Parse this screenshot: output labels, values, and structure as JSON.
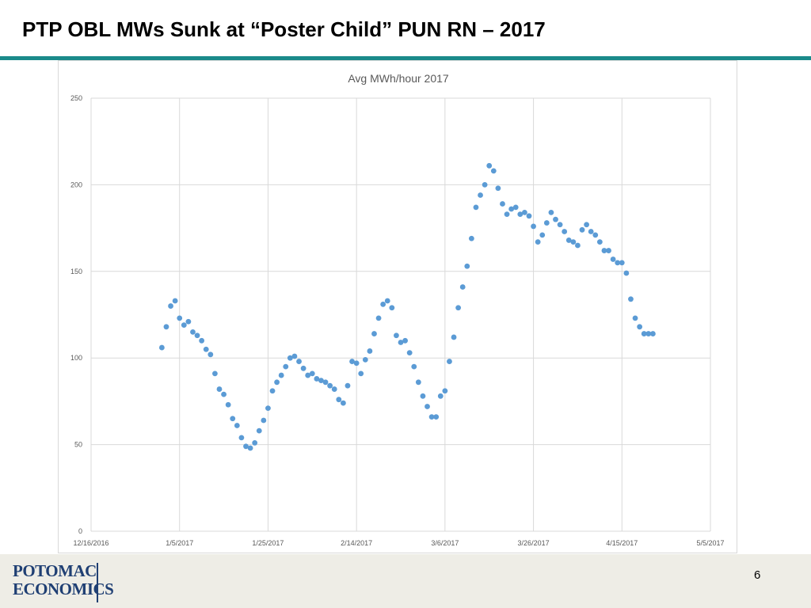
{
  "slide": {
    "title": "PTP OBL MWs Sunk at “Poster Child” PUN RN – 2017",
    "page_number": "6",
    "logo_lines": [
      "POTOMAC",
      "ECONOMICS"
    ],
    "accent_color": "#1a8a8a"
  },
  "chart_data": {
    "type": "scatter",
    "title": "Avg MWh/hour  2017",
    "xlabel": "",
    "ylabel": "",
    "xlim": [
      "2016-12-16",
      "2017-05-05"
    ],
    "ylim": [
      0,
      250
    ],
    "x_ticks": [
      "12/16/2016",
      "1/5/2017",
      "1/25/2017",
      "2/14/2017",
      "3/6/2017",
      "3/26/2017",
      "4/15/2017",
      "5/5/2017"
    ],
    "y_ticks": [
      0,
      50,
      100,
      150,
      200,
      250
    ],
    "grid": true,
    "legend": "none",
    "marker_color": "#5b9bd5",
    "series": [
      {
        "x": [
          "2017-01-01",
          "2017-01-02",
          "2017-01-03",
          "2017-01-04",
          "2017-01-05",
          "2017-01-06",
          "2017-01-07",
          "2017-01-08",
          "2017-01-09",
          "2017-01-10",
          "2017-01-11",
          "2017-01-12",
          "2017-01-13",
          "2017-01-14",
          "2017-01-15",
          "2017-01-16",
          "2017-01-17",
          "2017-01-18",
          "2017-01-19",
          "2017-01-20",
          "2017-01-21",
          "2017-01-22",
          "2017-01-23",
          "2017-01-24",
          "2017-01-25",
          "2017-01-26",
          "2017-01-27",
          "2017-01-28",
          "2017-01-29",
          "2017-01-30",
          "2017-01-31",
          "2017-02-01",
          "2017-02-02",
          "2017-02-03",
          "2017-02-04",
          "2017-02-05",
          "2017-02-06",
          "2017-02-07",
          "2017-02-08",
          "2017-02-09",
          "2017-02-10",
          "2017-02-11",
          "2017-02-12",
          "2017-02-13",
          "2017-02-14",
          "2017-02-15",
          "2017-02-16",
          "2017-02-17",
          "2017-02-18",
          "2017-02-19",
          "2017-02-20",
          "2017-02-21",
          "2017-02-22",
          "2017-02-23",
          "2017-02-24",
          "2017-02-25",
          "2017-02-26",
          "2017-02-27",
          "2017-02-28",
          "2017-03-01",
          "2017-03-02",
          "2017-03-03",
          "2017-03-04",
          "2017-03-05",
          "2017-03-06",
          "2017-03-07",
          "2017-03-08",
          "2017-03-09",
          "2017-03-10",
          "2017-03-11",
          "2017-03-12",
          "2017-03-13",
          "2017-03-14",
          "2017-03-15",
          "2017-03-16",
          "2017-03-17",
          "2017-03-18",
          "2017-03-19",
          "2017-03-20",
          "2017-03-21",
          "2017-03-22",
          "2017-03-23",
          "2017-03-24",
          "2017-03-25",
          "2017-03-26",
          "2017-03-27",
          "2017-03-28",
          "2017-03-29",
          "2017-03-30",
          "2017-03-31",
          "2017-04-01",
          "2017-04-02",
          "2017-04-03",
          "2017-04-04",
          "2017-04-05",
          "2017-04-06",
          "2017-04-07",
          "2017-04-08",
          "2017-04-09",
          "2017-04-10",
          "2017-04-11",
          "2017-04-12",
          "2017-04-13",
          "2017-04-14",
          "2017-04-15",
          "2017-04-16",
          "2017-04-17",
          "2017-04-18",
          "2017-04-19",
          "2017-04-20",
          "2017-04-21",
          "2017-04-22"
        ],
        "y": [
          106,
          118,
          130,
          133,
          123,
          119,
          121,
          115,
          113,
          110,
          105,
          102,
          91,
          82,
          79,
          73,
          65,
          61,
          54,
          49,
          48,
          51,
          58,
          64,
          71,
          81,
          86,
          90,
          95,
          100,
          101,
          98,
          94,
          90,
          91,
          88,
          87,
          86,
          84,
          82,
          76,
          74,
          84,
          98,
          97,
          91,
          99,
          104,
          114,
          123,
          131,
          133,
          129,
          113,
          109,
          110,
          103,
          95,
          86,
          78,
          72,
          66,
          66,
          78,
          81,
          98,
          112,
          129,
          141,
          153,
          169,
          187,
          194,
          200,
          211,
          208,
          198,
          189,
          183,
          186,
          187,
          183,
          184,
          182,
          176,
          167,
          171,
          178,
          184,
          180,
          177,
          173,
          168,
          167,
          165,
          174,
          177,
          173,
          171,
          167,
          162,
          162,
          157,
          155,
          155,
          149,
          134,
          123,
          118,
          114,
          114,
          114
        ]
      }
    ]
  }
}
